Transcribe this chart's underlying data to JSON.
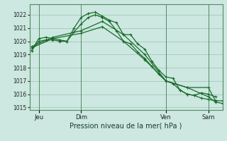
{
  "background_color": "#cce8e0",
  "grid_color": "#aaccc0",
  "line_color": "#1a6b2a",
  "xlabel": "Pression niveau de la mer( hPa )",
  "ylim": [
    1014.8,
    1022.8
  ],
  "yticks": [
    1015,
    1016,
    1017,
    1018,
    1019,
    1020,
    1021,
    1022
  ],
  "xlim": [
    -0.3,
    27.0
  ],
  "xtick_labels": [
    "Jeu",
    "Dim",
    "Ven",
    "Sam"
  ],
  "xtick_positions": [
    1,
    7,
    19,
    25
  ],
  "vline_positions": [
    1,
    7,
    19,
    25
  ],
  "series": [
    {
      "x": [
        0,
        1,
        2,
        3,
        4,
        5,
        6,
        7,
        8,
        9,
        10,
        11,
        12,
        13,
        14,
        15,
        16,
        17,
        18,
        19,
        20,
        21,
        22,
        23,
        24,
        25,
        26
      ],
      "y": [
        1019.3,
        1020.2,
        1020.3,
        1020.2,
        1020.1,
        1020.0,
        1021.0,
        1021.8,
        1022.1,
        1022.2,
        1021.9,
        1021.6,
        1021.4,
        1020.5,
        1020.5,
        1019.8,
        1019.4,
        1018.5,
        1017.8,
        1017.3,
        1017.2,
        1016.3,
        1016.0,
        1015.9,
        1016.1,
        1016.0,
        1015.8
      ],
      "marker": "+"
    },
    {
      "x": [
        0,
        1,
        2,
        3,
        4,
        5,
        6,
        7,
        8,
        9,
        10,
        11,
        12,
        13,
        14,
        15,
        16,
        17,
        18,
        19,
        20,
        21,
        22,
        23,
        24,
        25,
        26
      ],
      "y": [
        1019.3,
        1020.0,
        1020.1,
        1020.1,
        1020.0,
        1020.0,
        1020.7,
        1021.3,
        1021.8,
        1022.0,
        1021.8,
        1021.5,
        1020.8,
        1020.0,
        1019.8,
        1019.2,
        1018.7,
        1018.1,
        1017.5,
        1017.0,
        1016.8,
        1016.3,
        1016.0,
        1015.9,
        1015.7,
        1015.6,
        1015.5
      ],
      "marker": "+"
    },
    {
      "x": [
        0,
        3,
        7,
        10,
        13,
        16,
        19,
        22,
        25,
        26,
        27
      ],
      "y": [
        1019.6,
        1020.3,
        1020.8,
        1021.5,
        1020.5,
        1019.0,
        1017.0,
        1016.5,
        1016.5,
        1015.5,
        1015.5
      ],
      "marker": "+"
    },
    {
      "x": [
        0,
        3,
        7,
        10,
        13,
        16,
        19,
        22,
        25,
        26,
        27
      ],
      "y": [
        1019.5,
        1020.2,
        1020.6,
        1021.1,
        1020.0,
        1018.6,
        1017.0,
        1016.5,
        1015.8,
        1015.4,
        1015.3
      ],
      "marker": "+"
    }
  ]
}
